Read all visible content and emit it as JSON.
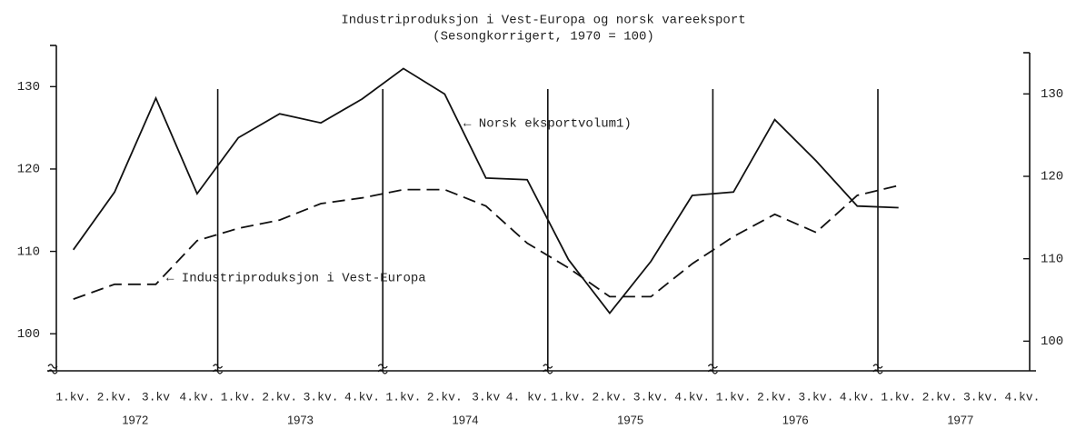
{
  "chart_data": {
    "type": "line",
    "title": "Industriproduksjon i Vest-Europa og norsk vareeksport",
    "subtitle": "(Sesongkorrigert, 1970 = 100)",
    "categories": [
      "1.kv.",
      "2.kv.",
      "3.kv",
      "4.kv.",
      "1.kv.",
      "2.kv.",
      "3.kv.",
      "4.kv.",
      "1.kv.",
      "2.kv.",
      "3.kv",
      "4. kv.",
      "1.kv.",
      "2.kv.",
      "3.kv.",
      "4.kv.",
      "1.kv.",
      "2.kv.",
      "3.kv.",
      "4.kv.",
      "1.kv.",
      "2.kv.",
      "3.kv.",
      "4.kv."
    ],
    "years": [
      "1972",
      "1973",
      "1974",
      "1975",
      "1976",
      "1977"
    ],
    "series": [
      {
        "name": "Norsk eksportvolum1)",
        "color": "#111111",
        "line_style": "solid",
        "values": [
          110.2,
          117.2,
          128.6,
          117.0,
          123.8,
          126.7,
          125.6,
          128.5,
          132.2,
          129.1,
          118.9,
          118.7,
          109.0,
          102.5,
          108.8,
          116.8,
          117.2,
          126.0,
          121.0,
          115.5,
          115.3,
          null,
          null,
          null
        ]
      },
      {
        "name": "Industriproduksjon i Vest-Europa",
        "color": "#111111",
        "line_style": "dashed",
        "values": [
          104.2,
          106.0,
          106.0,
          111.3,
          112.8,
          113.8,
          115.8,
          116.5,
          117.5,
          117.5,
          115.5,
          111.0,
          108.0,
          104.5,
          104.5,
          108.5,
          111.8,
          114.5,
          112.3,
          116.8,
          118.0,
          null,
          null,
          null
        ]
      }
    ],
    "annotations": [
      "← Norsk eksportvolum1)",
      "← Industriproduksjon i Vest-Europa"
    ],
    "ylim": [
      95.5,
      135
    ],
    "yticks": [
      100,
      110,
      120,
      130
    ],
    "y2lim": [
      96.4,
      135
    ],
    "y2ticks": [
      100,
      110,
      120,
      130
    ]
  }
}
